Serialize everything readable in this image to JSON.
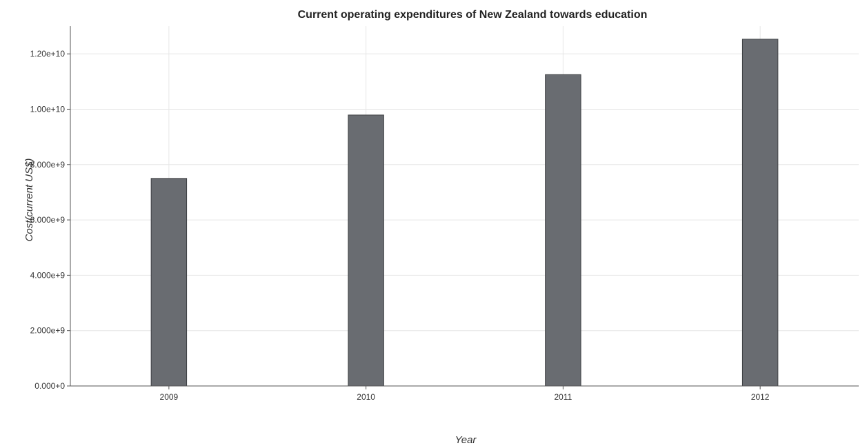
{
  "chart_data": {
    "type": "bar",
    "title": "Current operating expenditures of New Zealand towards education",
    "xlabel": "Year",
    "ylabel": "Cost(current US$)",
    "categories": [
      "2009",
      "2010",
      "2011",
      "2012"
    ],
    "values": [
      7500000000,
      9790000000,
      11250000000,
      12530000000
    ],
    "ylim": [
      0,
      13000000000
    ],
    "yticks": [
      0,
      2000000000,
      4000000000,
      6000000000,
      8000000000,
      10000000000,
      12000000000
    ],
    "ytick_labels": [
      "0.000+0",
      "2.000e+9",
      "4.000e+9",
      "6.000e+9",
      "8.000e+9",
      "1.00e+10",
      "1.20e+10"
    ],
    "grid": true,
    "bar_color": "#696c71",
    "bar_border_color": "#3d3f42"
  }
}
